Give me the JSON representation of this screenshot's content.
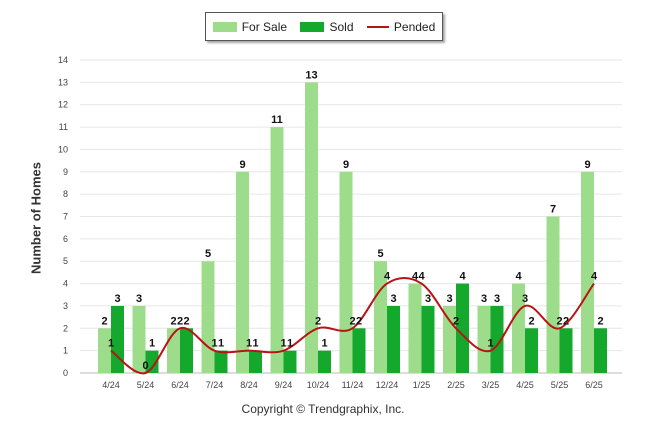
{
  "chart_data": {
    "type": "bar",
    "ylabel": "Number of Homes",
    "ylim": [
      0,
      14
    ],
    "yticks": [
      0,
      1,
      2,
      3,
      4,
      5,
      6,
      7,
      8,
      9,
      10,
      11,
      12,
      13,
      14
    ],
    "grid": true,
    "legend_placement": "top-center",
    "categories": [
      "4/24",
      "5/24",
      "6/24",
      "7/24",
      "8/24",
      "9/24",
      "10/24",
      "11/24",
      "12/24",
      "1/25",
      "2/25",
      "3/25",
      "4/25",
      "5/25",
      "6/25"
    ],
    "series": [
      {
        "name": "For Sale",
        "kind": "bar",
        "color": "#9ddc8a",
        "values": [
          2,
          3,
          2,
          5,
          9,
          11,
          13,
          9,
          5,
          4,
          3,
          3,
          4,
          7,
          9
        ]
      },
      {
        "name": "Sold",
        "kind": "bar",
        "color": "#14a82c",
        "values": [
          3,
          1,
          2,
          1,
          1,
          1,
          1,
          2,
          3,
          3,
          4,
          3,
          2,
          2,
          2
        ]
      },
      {
        "name": "Pended",
        "kind": "line",
        "color": "#b81414",
        "values": [
          1,
          0,
          2,
          1,
          1,
          1,
          2,
          2,
          4,
          4,
          2,
          1,
          3,
          2,
          4
        ]
      }
    ]
  },
  "credit": "Copyright © Trendgraphix, Inc."
}
